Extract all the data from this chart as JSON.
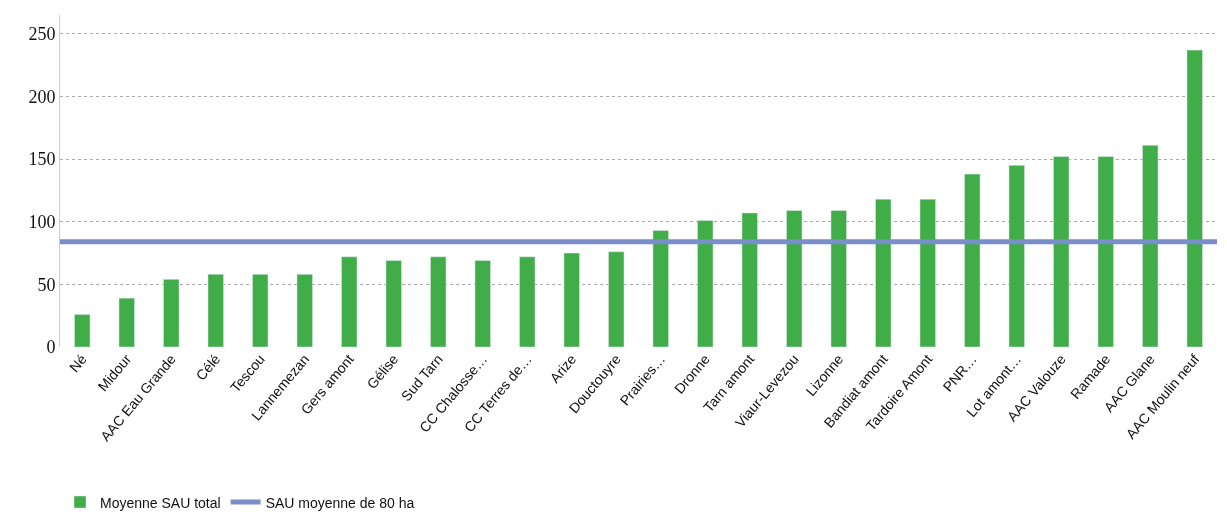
{
  "chart_data": {
    "type": "bar",
    "categories": [
      "Né",
      "Midour",
      "AAC Eau Grande",
      "Célé",
      "Tescou",
      "Lannemezan",
      "Gers amont",
      "Gélise",
      "Sud Tarn",
      "CC Chalosse…",
      "CC Terres de…",
      "Arize",
      "Douctouyre",
      "Prairies…",
      "Dronne",
      "Tarn amont",
      "Viaur-Levezou",
      "Lizonne",
      "Bandiat amont",
      "Tardoire Amont",
      "PNR…",
      "Lot amont…",
      "AAC Valouze",
      "Ramade",
      "AAC Glane",
      "AAC Moulin neuf"
    ],
    "series": [
      {
        "name": "Moyenne SAU total",
        "color": "#41ad49",
        "values": [
          26,
          39,
          54,
          58,
          58,
          58,
          72,
          69,
          72,
          69,
          72,
          75,
          76,
          93,
          101,
          107,
          109,
          109,
          118,
          118,
          138,
          145,
          152,
          152,
          161,
          237
        ]
      }
    ],
    "ylim": [
      0,
      265
    ],
    "yticks": [
      0,
      50,
      100,
      150,
      200,
      250
    ],
    "grid": "y",
    "legend": "bottom left",
    "ref_lines": [
      {
        "axis": "y",
        "value": 84,
        "label": "SAU moyenne de 80 ha",
        "color": "#7a8fc9"
      }
    ]
  }
}
